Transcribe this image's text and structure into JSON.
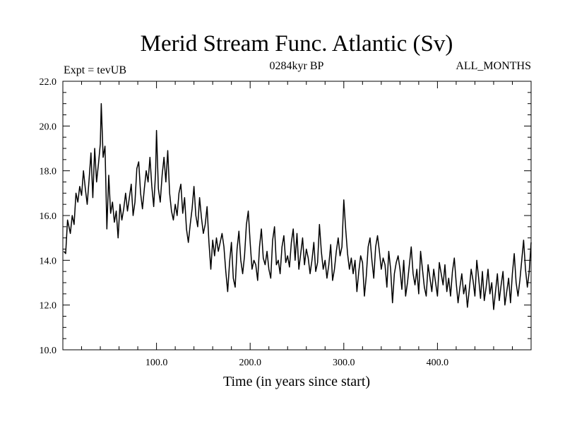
{
  "chart_data": {
    "type": "line",
    "title": "Merid Stream Func. Atlantic (Sv)",
    "subtitle": "0284kyr BP",
    "left_label": "Expt = tevUB",
    "right_label": "ALL_MONTHS",
    "xlabel": "Time (in years since start)",
    "ylabel": "",
    "xlim": [
      0,
      500
    ],
    "ylim": [
      10,
      22
    ],
    "x_ticks": [
      {
        "value": 100,
        "label": "100.0"
      },
      {
        "value": 200,
        "label": "200.0"
      },
      {
        "value": 300,
        "label": "300.0"
      },
      {
        "value": 400,
        "label": "400.0"
      }
    ],
    "y_ticks": [
      {
        "value": 10,
        "label": "10.0"
      },
      {
        "value": 12,
        "label": "12.0"
      },
      {
        "value": 14,
        "label": "14.0"
      },
      {
        "value": 16,
        "label": "16.0"
      },
      {
        "value": 18,
        "label": "18.0"
      },
      {
        "value": 20,
        "label": "20.0"
      },
      {
        "value": 22,
        "label": "22.0"
      }
    ],
    "grid": false,
    "line_color": "#000000",
    "series": [
      {
        "x": [
          1,
          3,
          5,
          8,
          10,
          12,
          14,
          16,
          18,
          20,
          22,
          24,
          26,
          28,
          30,
          32,
          34,
          36,
          38,
          40,
          41,
          43,
          45,
          47,
          49,
          51,
          53,
          55,
          57,
          59,
          61,
          63,
          65,
          67,
          69,
          71,
          73,
          75,
          77,
          79,
          81,
          83,
          85,
          87,
          89,
          91,
          93,
          95,
          97,
          99,
          100,
          102,
          104,
          106,
          108,
          110,
          112,
          114,
          116,
          118,
          120,
          122,
          124,
          126,
          128,
          130,
          132,
          134,
          136,
          138,
          140,
          142,
          144,
          146,
          148,
          150,
          152,
          154,
          156,
          158,
          160,
          162,
          164,
          166,
          168,
          170,
          172,
          174,
          176,
          178,
          180,
          182,
          184,
          186,
          188,
          190,
          192,
          194,
          196,
          198,
          200,
          202,
          204,
          206,
          208,
          210,
          212,
          214,
          216,
          218,
          220,
          222,
          224,
          226,
          228,
          230,
          232,
          234,
          236,
          238,
          240,
          242,
          244,
          246,
          248,
          250,
          252,
          254,
          256,
          258,
          260,
          262,
          264,
          266,
          268,
          270,
          272,
          274,
          276,
          278,
          280,
          282,
          284,
          286,
          288,
          290,
          292,
          294,
          296,
          298,
          300,
          302,
          304,
          306,
          308,
          310,
          312,
          314,
          316,
          318,
          320,
          322,
          324,
          326,
          328,
          330,
          332,
          334,
          336,
          338,
          340,
          342,
          344,
          346,
          348,
          350,
          352,
          354,
          356,
          358,
          360,
          362,
          364,
          366,
          368,
          370,
          372,
          374,
          376,
          378,
          380,
          382,
          384,
          386,
          388,
          390,
          392,
          394,
          396,
          398,
          400,
          402,
          404,
          406,
          408,
          410,
          412,
          414,
          416,
          418,
          420,
          422,
          424,
          426,
          428,
          430,
          432,
          434,
          436,
          438,
          440,
          442,
          444,
          446,
          448,
          450,
          452,
          454,
          456,
          458,
          460,
          462,
          464,
          466,
          468,
          470,
          472,
          474,
          476,
          478,
          480,
          482,
          484,
          486,
          488,
          490,
          492,
          494,
          496,
          498,
          500
        ],
        "y": [
          14.4,
          14.3,
          15.8,
          15.2,
          16.0,
          15.6,
          17.0,
          16.6,
          17.3,
          16.9,
          18.0,
          17.2,
          16.5,
          17.6,
          18.8,
          16.8,
          19.0,
          17.5,
          18.3,
          19.2,
          21.0,
          18.6,
          19.1,
          15.4,
          17.8,
          16.1,
          16.6,
          15.7,
          16.2,
          15.0,
          16.5,
          15.8,
          16.3,
          17.0,
          16.2,
          16.8,
          17.4,
          16.0,
          16.6,
          18.1,
          18.4,
          17.0,
          16.3,
          17.2,
          18.0,
          17.5,
          18.6,
          17.3,
          16.4,
          17.9,
          19.8,
          17.2,
          16.6,
          17.8,
          18.6,
          17.5,
          18.9,
          17.0,
          16.2,
          15.8,
          16.5,
          16.0,
          17.0,
          17.4,
          16.1,
          16.8,
          15.4,
          14.8,
          15.6,
          16.3,
          17.3,
          16.0,
          15.5,
          16.8,
          15.9,
          15.2,
          15.6,
          16.4,
          14.8,
          13.6,
          14.9,
          14.2,
          15.0,
          14.4,
          14.8,
          15.2,
          14.6,
          13.5,
          12.6,
          13.9,
          14.8,
          13.2,
          12.8,
          14.5,
          15.3,
          14.0,
          13.4,
          14.2,
          15.6,
          16.2,
          14.8,
          13.6,
          14.0,
          13.8,
          13.1,
          14.6,
          15.4,
          14.1,
          13.8,
          14.4,
          13.6,
          13.2,
          14.9,
          15.5,
          13.8,
          14.0,
          13.4,
          14.6,
          15.1,
          13.9,
          14.2,
          13.7,
          14.8,
          15.4,
          14.0,
          15.2,
          13.6,
          14.3,
          15.0,
          13.8,
          14.5,
          14.1,
          13.4,
          14.0,
          14.8,
          13.5,
          13.9,
          15.6,
          14.4,
          13.6,
          14.0,
          13.2,
          13.8,
          14.7,
          13.1,
          13.6,
          14.4,
          15.0,
          14.2,
          14.6,
          16.7,
          15.4,
          14.3,
          13.6,
          14.1,
          13.4,
          14.0,
          12.6,
          13.5,
          14.2,
          13.9,
          12.4,
          13.3,
          14.6,
          15.0,
          14.0,
          13.2,
          14.6,
          15.1,
          14.4,
          13.6,
          14.1,
          13.8,
          12.8,
          14.4,
          13.6,
          12.1,
          13.4,
          13.9,
          14.2,
          13.6,
          12.7,
          14.0,
          12.4,
          13.0,
          13.8,
          14.6,
          13.4,
          12.9,
          13.6,
          12.5,
          14.4,
          13.6,
          12.8,
          12.4,
          13.8,
          13.2,
          12.6,
          13.6,
          13.0,
          12.4,
          13.9,
          13.4,
          12.9,
          13.8,
          12.6,
          13.2,
          12.4,
          13.5,
          14.1,
          13.0,
          12.1,
          12.8,
          13.4,
          12.5,
          12.9,
          11.9,
          12.7,
          13.6,
          13.1,
          12.4,
          14.0,
          13.2,
          12.3,
          13.5,
          12.2,
          12.8,
          13.6,
          12.5,
          13.0,
          11.8,
          12.6,
          13.4,
          12.2,
          12.9,
          13.5,
          12.0,
          12.6,
          13.2,
          12.1,
          13.4,
          14.3,
          13.0,
          12.4,
          13.1,
          14.0,
          14.9,
          13.6,
          12.8,
          13.5,
          14.8
        ]
      }
    ]
  }
}
